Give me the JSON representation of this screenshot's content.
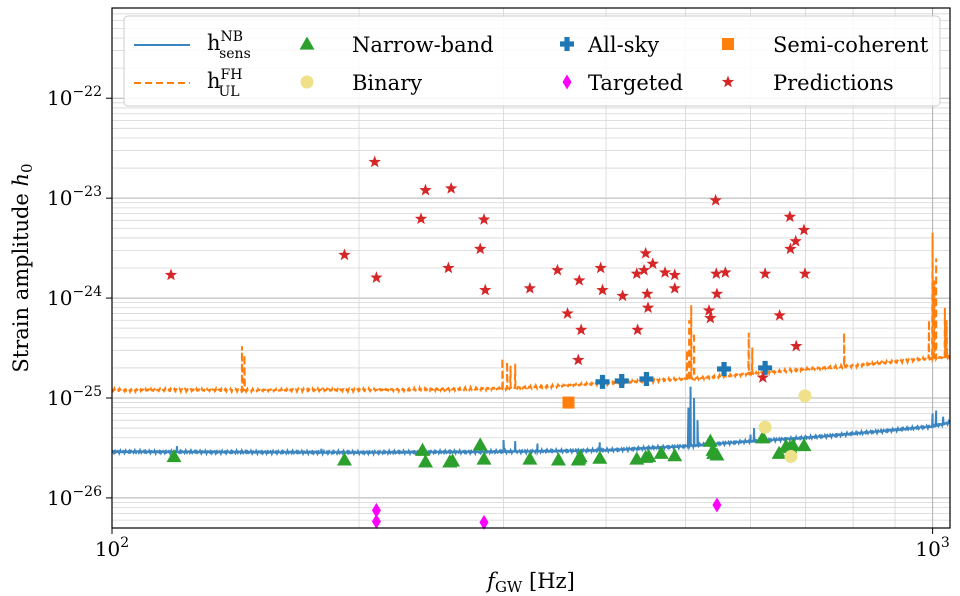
{
  "chart_data": {
    "type": "scatter",
    "xlabel": "f_GW [Hz]",
    "ylabel": "Strain amplitude h_0",
    "xscale": "log",
    "yscale": "log",
    "xlim": [
      100,
      1050
    ],
    "ylim": [
      5e-27,
      8e-22
    ],
    "grid": true,
    "legend_position": "top",
    "x_ticks": [
      {
        "value": 100,
        "label": "10^2"
      },
      {
        "value": 1000,
        "label": "10^3"
      }
    ],
    "y_ticks": [
      {
        "value": 1e-26,
        "label": "10^-26"
      },
      {
        "value": 1e-25,
        "label": "10^-25"
      },
      {
        "value": 1e-24,
        "label": "10^-24"
      },
      {
        "value": 1e-23,
        "label": "10^-23"
      },
      {
        "value": 1e-22,
        "label": "10^-22"
      }
    ],
    "lines": [
      {
        "name": "h_sens^NB",
        "label_base": "h",
        "label_sup": "NB",
        "label_sub": "sens",
        "color": "#3b86c0",
        "style": "solid",
        "base": [
          [
            100,
            2.9e-26
          ],
          [
            200,
            2.85e-26
          ],
          [
            300,
            2.9e-26
          ],
          [
            400,
            3e-26
          ],
          [
            500,
            3.3e-26
          ],
          [
            600,
            3.7e-26
          ],
          [
            700,
            4e-26
          ],
          [
            800,
            4.4e-26
          ],
          [
            900,
            4.8e-26
          ],
          [
            1000,
            5.2e-26
          ],
          [
            1050,
            5.7e-26
          ]
        ],
        "spikes": [
          {
            "x": 120,
            "h": 3.3e-26
          },
          {
            "x": 180,
            "h": 3.1e-26
          },
          {
            "x": 300,
            "h": 3.8e-26
          },
          {
            "x": 310,
            "h": 3.7e-26
          },
          {
            "x": 330,
            "h": 3.5e-26
          },
          {
            "x": 393,
            "h": 3.6e-26
          },
          {
            "x": 504,
            "h": 8e-26
          },
          {
            "x": 507,
            "h": 1.3e-25
          },
          {
            "x": 512,
            "h": 1e-25
          },
          {
            "x": 517,
            "h": 6e-26
          },
          {
            "x": 600,
            "h": 4.3e-26
          },
          {
            "x": 606,
            "h": 5e-26
          },
          {
            "x": 1000,
            "h": 7e-26
          },
          {
            "x": 1010,
            "h": 7.5e-26
          },
          {
            "x": 1030,
            "h": 6.5e-26
          }
        ]
      },
      {
        "name": "h_UL^FH",
        "label_base": "h",
        "label_sup": "FH",
        "label_sub": "UL",
        "color": "#ff7f0e",
        "style": "dashed",
        "base": [
          [
            100,
            1.2e-25
          ],
          [
            200,
            1.2e-25
          ],
          [
            300,
            1.25e-25
          ],
          [
            400,
            1.4e-25
          ],
          [
            500,
            1.55e-25
          ],
          [
            600,
            1.75e-25
          ],
          [
            700,
            1.95e-25
          ],
          [
            800,
            2.1e-25
          ],
          [
            900,
            2.3e-25
          ],
          [
            1000,
            2.5e-25
          ],
          [
            1050,
            2.6e-25
          ]
        ],
        "spikes": [
          {
            "x": 144,
            "h": 3.3e-25
          },
          {
            "x": 145,
            "h": 2.7e-25
          },
          {
            "x": 299,
            "h": 2.5e-25
          },
          {
            "x": 303,
            "h": 2.3e-25
          },
          {
            "x": 306,
            "h": 2.1e-25
          },
          {
            "x": 310,
            "h": 2.2e-25
          },
          {
            "x": 502,
            "h": 3e-25
          },
          {
            "x": 505,
            "h": 6e-25
          },
          {
            "x": 508,
            "h": 8.5e-25
          },
          {
            "x": 512,
            "h": 4.5e-25
          },
          {
            "x": 597,
            "h": 4.5e-25
          },
          {
            "x": 603,
            "h": 3.2e-25
          },
          {
            "x": 780,
            "h": 4.5e-25
          },
          {
            "x": 990,
            "h": 6e-25
          },
          {
            "x": 1000,
            "h": 4.5e-24
          },
          {
            "x": 1005,
            "h": 1.5e-24
          },
          {
            "x": 1010,
            "h": 2.5e-24
          },
          {
            "x": 1035,
            "h": 8e-25
          },
          {
            "x": 1040,
            "h": 6e-25
          }
        ]
      }
    ],
    "series": [
      {
        "name": "Narrow-band",
        "marker": "triangle",
        "color": "#2ca02c",
        "points": [
          [
            119,
            2.6e-26
          ],
          [
            192,
            2.4e-26
          ],
          [
            239,
            3e-26
          ],
          [
            241,
            2.3e-26
          ],
          [
            258,
            2.3e-26
          ],
          [
            260,
            2.35e-26
          ],
          [
            281,
            3.4e-26
          ],
          [
            284,
            2.45e-26
          ],
          [
            323,
            2.45e-26
          ],
          [
            350,
            2.4e-26
          ],
          [
            370,
            2.4e-26
          ],
          [
            371,
            2.5e-26
          ],
          [
            372,
            2.6e-26
          ],
          [
            393,
            2.5e-26
          ],
          [
            436,
            2.45e-26
          ],
          [
            447,
            2.55e-26
          ],
          [
            451,
            2.6e-26
          ],
          [
            467,
            2.8e-26
          ],
          [
            485,
            2.65e-26
          ],
          [
            536,
            3.7e-26
          ],
          [
            540,
            3e-26
          ],
          [
            541,
            2.8e-26
          ],
          [
            546,
            2.7e-26
          ],
          [
            621,
            4e-26
          ],
          [
            650,
            2.8e-26
          ],
          [
            663,
            3.3e-26
          ],
          [
            670,
            3.2e-26
          ],
          [
            676,
            3.35e-26
          ],
          [
            697,
            3.35e-26
          ]
        ]
      },
      {
        "name": "Binary",
        "marker": "circle",
        "color": "#f0e08a",
        "points": [
          [
            625,
            5.1e-26
          ],
          [
            672,
            2.6e-26
          ],
          [
            699,
            1.05e-25
          ]
        ]
      },
      {
        "name": "All-sky",
        "marker": "plus",
        "color": "#1f77b4",
        "points": [
          [
            396,
            1.45e-25
          ],
          [
            418,
            1.48e-25
          ],
          [
            448,
            1.55e-25
          ],
          [
            557,
            1.95e-25
          ],
          [
            625,
            2e-25
          ]
        ]
      },
      {
        "name": "Targeted",
        "marker": "diamond",
        "color": "#ff00ff",
        "points": [
          [
            210,
            7.5e-27
          ],
          [
            210,
            5.8e-27
          ],
          [
            284,
            5.7e-27
          ],
          [
            546,
            8.5e-27
          ]
        ]
      },
      {
        "name": "Semi-coherent",
        "marker": "square",
        "color": "#ff7f0e",
        "points": [
          [
            360,
            9e-26
          ]
        ]
      },
      {
        "name": "Predictions",
        "marker": "star",
        "color": "#d62728",
        "points": [
          [
            118,
            1.7e-24
          ],
          [
            192,
            2.7e-24
          ],
          [
            209,
            2.3e-23
          ],
          [
            210,
            1.6e-24
          ],
          [
            238,
            6.2e-24
          ],
          [
            241,
            1.2e-23
          ],
          [
            257,
            2e-24
          ],
          [
            259,
            1.25e-23
          ],
          [
            281,
            3.1e-24
          ],
          [
            284,
            6.1e-24
          ],
          [
            285,
            1.2e-24
          ],
          [
            323,
            1.25e-24
          ],
          [
            349,
            1.9e-24
          ],
          [
            359,
            7e-25
          ],
          [
            370,
            2.4e-25
          ],
          [
            371,
            1.5e-24
          ],
          [
            373,
            4.8e-25
          ],
          [
            394,
            2e-24
          ],
          [
            396,
            1.2e-24
          ],
          [
            419,
            1.05e-24
          ],
          [
            436,
            1.75e-24
          ],
          [
            437,
            4.8e-25
          ],
          [
            445,
            1.9e-24
          ],
          [
            447,
            2.8e-24
          ],
          [
            449,
            1.1e-24
          ],
          [
            450,
            8e-25
          ],
          [
            456,
            2.2e-24
          ],
          [
            472,
            1.8e-24
          ],
          [
            485,
            1.25e-24
          ],
          [
            485,
            1.7e-24
          ],
          [
            534,
            7.5e-25
          ],
          [
            536,
            6.3e-25
          ],
          [
            544,
            9.5e-24
          ],
          [
            545,
            1.75e-24
          ],
          [
            546,
            1.1e-24
          ],
          [
            559,
            1.8e-24
          ],
          [
            621,
            1.6e-25
          ],
          [
            625,
            1.75e-24
          ],
          [
            651,
            6.7e-25
          ],
          [
            670,
            6.5e-24
          ],
          [
            671,
            3.1e-24
          ],
          [
            681,
            3.7e-24
          ],
          [
            682,
            3.3e-25
          ],
          [
            697,
            4.8e-24
          ],
          [
            699,
            1.75e-24
          ]
        ]
      }
    ]
  }
}
